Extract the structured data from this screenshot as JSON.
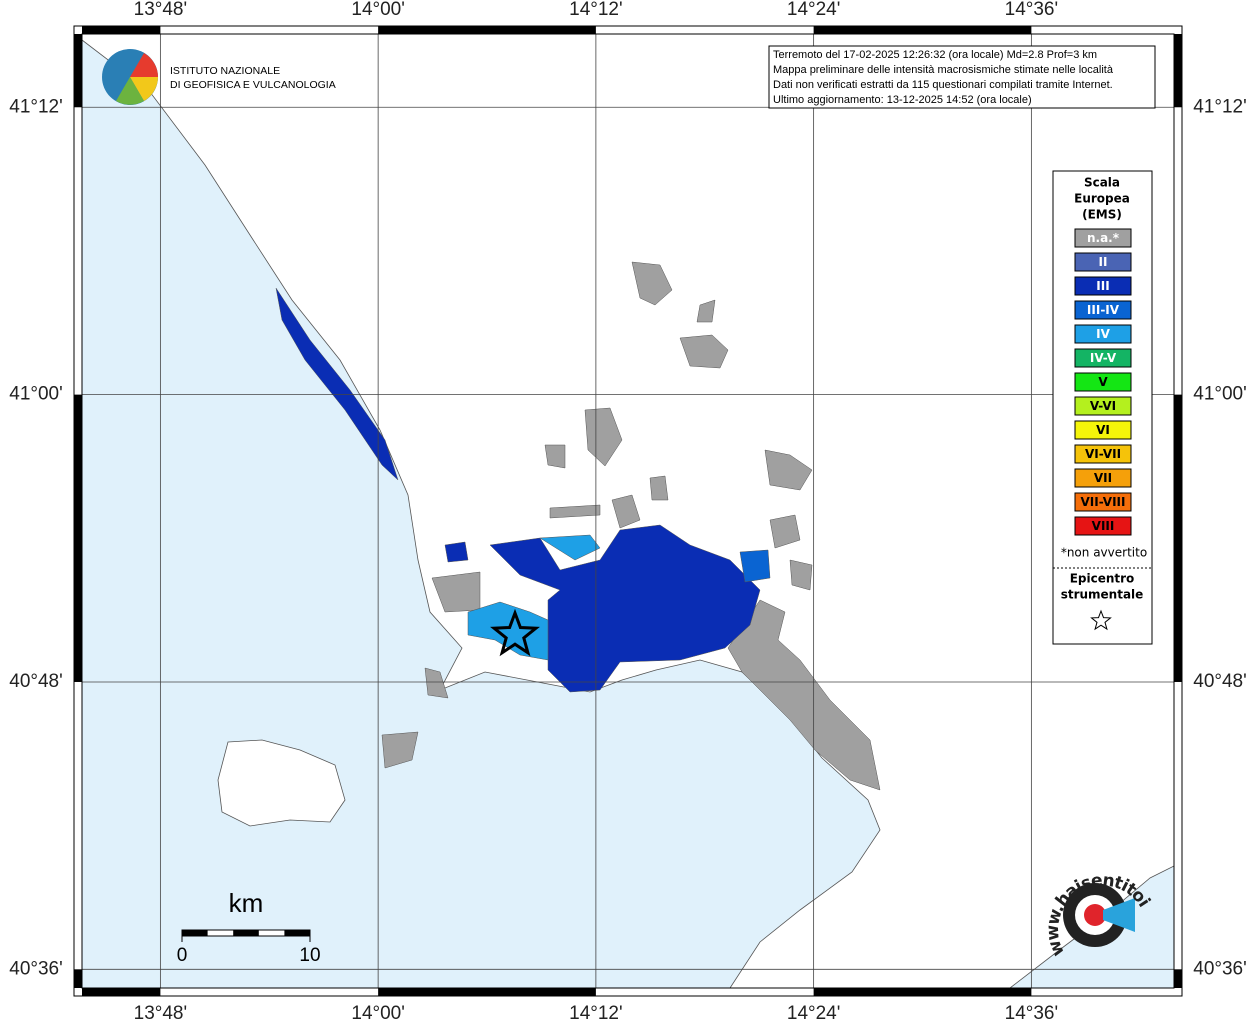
{
  "map": {
    "lonlim": [
      13.728,
      14.731
    ],
    "latlim": [
      40.587,
      41.251
    ],
    "lonticks": [
      {
        "value": 13.8,
        "label": "13°48'"
      },
      {
        "value": 14.0,
        "label": "14°00'"
      },
      {
        "value": 14.2,
        "label": "14°12'"
      },
      {
        "value": 14.4,
        "label": "14°24'"
      },
      {
        "value": 14.6,
        "label": "14°36'"
      }
    ],
    "latticks": [
      {
        "value": 41.2,
        "label": "41°12'"
      },
      {
        "value": 41.0,
        "label": "41°00'"
      },
      {
        "value": 40.8,
        "label": "40°48'"
      },
      {
        "value": 40.6,
        "label": "40°36'"
      }
    ],
    "grid": true,
    "sea_color": "#e0f1fb",
    "logo": [
      "ISTITUTO NAZIONALE",
      "DI GEOFISICA E VULCANOLOGIA"
    ],
    "info": [
      "Terremoto del 17-02-2025 12:26:32 (ora locale) Md=2.8 Prof=3 km",
      "Mappa preliminare delle intensità macrosismiche stimate nelle località",
      "Dati non verificati estratti da 115 questionari compilati tramite Internet.",
      "Ultimo aggiornamento: 13-12-2025 14:52 (ora locale)"
    ],
    "legend": {
      "title": [
        "Scala",
        "Europea",
        "(EMS)"
      ],
      "entries": [
        {
          "label": "n.a.*",
          "color": "#a0a0a0"
        },
        {
          "label": "II",
          "color": "#4a64b4"
        },
        {
          "label": "III",
          "color": "#0a2db4"
        },
        {
          "label": "III-IV",
          "color": "#0a64d2"
        },
        {
          "label": "IV",
          "color": "#1ea0e6"
        },
        {
          "label": "IV-V",
          "color": "#14b464"
        },
        {
          "label": "V",
          "color": "#14e614"
        },
        {
          "label": "V-VI",
          "color": "#b4f01e"
        },
        {
          "label": "VI",
          "color": "#f5f50a"
        },
        {
          "label": "VI-VII",
          "color": "#f5c30a"
        },
        {
          "label": "VII",
          "color": "#f5a00a"
        },
        {
          "label": "VII-VIII",
          "color": "#f56e0a"
        },
        {
          "label": "VIII",
          "color": "#e61414"
        }
      ],
      "note": "*non avvertito",
      "epicenter": [
        "Epicentro",
        "strumentale"
      ]
    },
    "scale": {
      "unit": "km",
      "ticks": [
        0,
        10
      ]
    },
    "watermark": "www.haisentitoilterremoto.it"
  }
}
